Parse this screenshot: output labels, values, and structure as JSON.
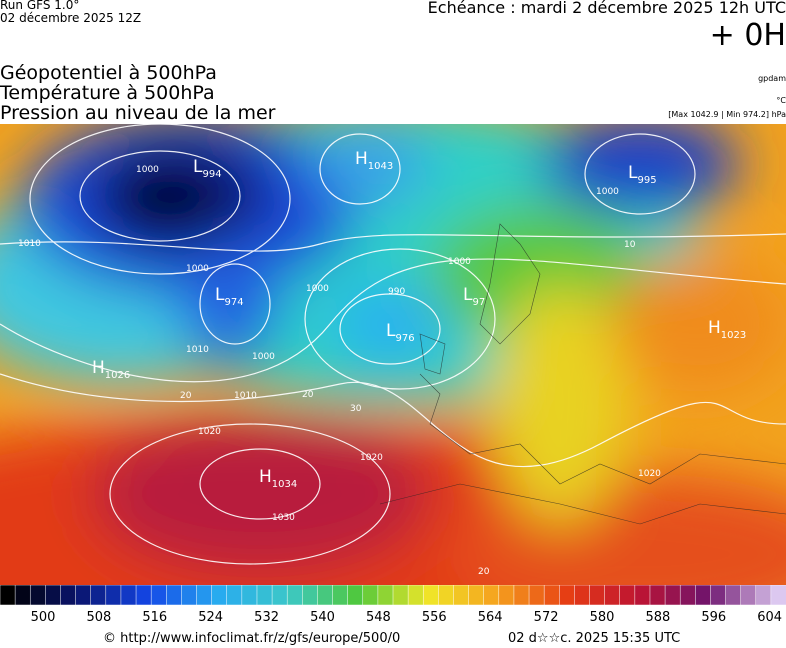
{
  "header": {
    "run": "Run GFS 1.0°",
    "date": "02 décembre 2025 12Z",
    "forecast": "Echéance : mardi 2 décembre 2025 12h UTC",
    "step": "+ 0H",
    "fields": [
      "Géopotentiel à 500hPa",
      "Température à 500hPa",
      "Pression au niveau de la mer"
    ],
    "unit_geopotential": "gpdam",
    "unit_temperature": "°C",
    "pressure_range": "[Max 1042.9 | Min 974.2] hPa"
  },
  "map": {
    "centers": [
      {
        "kind": "L",
        "value": "994"
      },
      {
        "kind": "H",
        "value": "1043"
      },
      {
        "kind": "L",
        "value": "995"
      },
      {
        "kind": "L",
        "value": "974"
      },
      {
        "kind": "L",
        "value": "97"
      },
      {
        "kind": "L",
        "value": "976"
      },
      {
        "kind": "H",
        "value": "1026"
      },
      {
        "kind": "H",
        "value": "1034"
      },
      {
        "kind": "H",
        "value": "1023"
      }
    ],
    "isoline_labels": [
      "1000",
      "1010",
      "1000",
      "1000",
      "990",
      "1000",
      "1010",
      "1000",
      "1010",
      "1020",
      "1030",
      "1020",
      "20",
      "20",
      "30",
      "1000",
      "10",
      "1020",
      "20"
    ]
  },
  "colorbar": {
    "labels": [
      500,
      508,
      516,
      524,
      532,
      540,
      548,
      556,
      564,
      572,
      580,
      588,
      596,
      604
    ]
  },
  "footer": {
    "source": "© http://www.infoclimat.fr/z/gfs/europe/500/0",
    "timestamp": "02 d☆☆c. 2025 15:35 UTC"
  }
}
